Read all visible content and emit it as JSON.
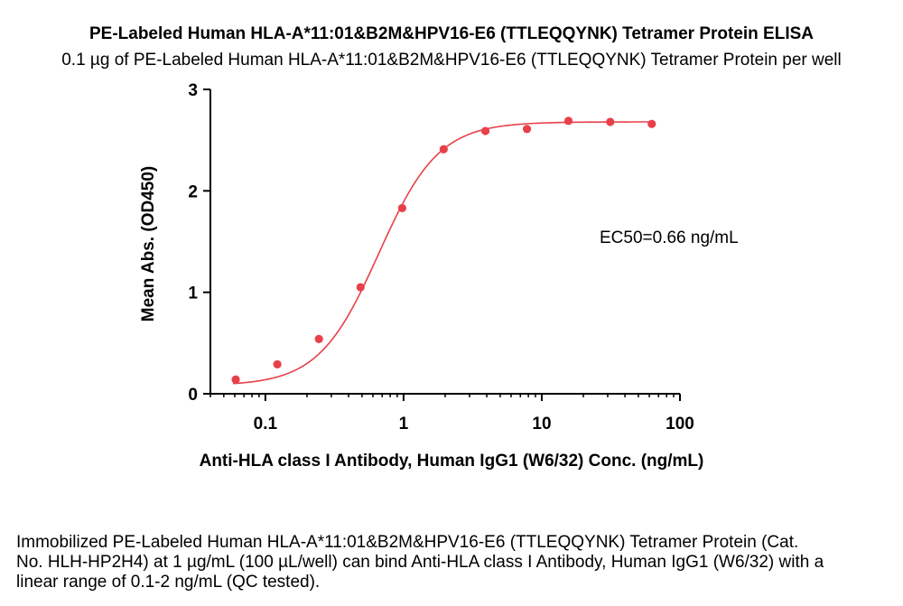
{
  "title": "PE-Labeled Human HLA-A*11:01&B2M&HPV16-E6 (TTLEQQYNK) Tetramer Protein ELISA",
  "subtitle": "0.1 µg of PE-Labeled Human HLA-A*11:01&B2M&HPV16-E6 (TTLEQQYNK) Tetramer Protein per well",
  "caption": "Immobilized PE-Labeled Human HLA-A*11:01&B2M&HPV16-E6 (TTLEQQYNK) Tetramer Protein (Cat. No. HLH-HP2H4) at 1 µg/mL (100 µL/well) can bind Anti-HLA class I Antibody, Human IgG1 (W6/32) with a linear range of 0.1-2 ng/mL (QC tested).",
  "colors": {
    "series": "#e8404a",
    "axis": "#000000"
  },
  "chart_data": {
    "type": "scatter",
    "title": "PE-Labeled Human HLA-A*11:01&B2M&HPV16-E6 (TTLEQQYNK) Tetramer Protein ELISA",
    "subtitle": "0.1 µg of PE-Labeled Human HLA-A*11:01&B2M&HPV16-E6 (TTLEQQYNK) Tetramer Protein per well",
    "xlabel": "Anti-HLA class I Antibody, Human IgG1 (W6/32) Conc. (ng/mL)",
    "ylabel": "Mean Abs. (OD450)",
    "xscale": "log",
    "xlim": [
      0.04,
      100
    ],
    "ylim": [
      0,
      3
    ],
    "xticks": [
      0.1,
      1,
      10,
      100
    ],
    "xtick_labels": [
      "0.1",
      "1",
      "10",
      "100"
    ],
    "yticks": [
      0,
      1,
      2,
      3
    ],
    "ytick_labels": [
      "0",
      "1",
      "2",
      "3"
    ],
    "grid": false,
    "annotation": "EC50=0.66 ng/mL",
    "series": [
      {
        "x": [
          0.061,
          0.122,
          0.244,
          0.488,
          0.977,
          1.95,
          3.91,
          7.81,
          15.6,
          31.3,
          62.5
        ],
        "y": [
          0.14,
          0.29,
          0.54,
          1.05,
          1.83,
          2.41,
          2.59,
          2.61,
          2.69,
          2.68,
          2.66
        ],
        "fit": "4PL",
        "fit_params": {
          "bottom": 0.08,
          "top": 2.68,
          "ec50": 0.66,
          "hill": 2.0
        }
      }
    ]
  }
}
